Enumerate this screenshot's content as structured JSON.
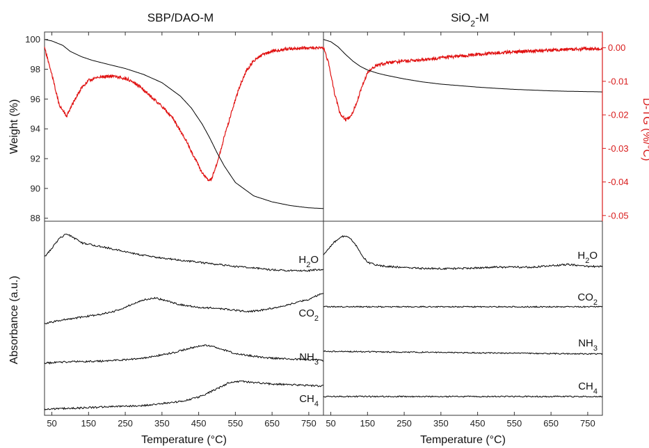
{
  "chart_data": {
    "type": "line",
    "colors": {
      "weight": "#000000",
      "dtg": "#e01010",
      "ftir": "#000000",
      "axis_right": "#d81b1b"
    },
    "panel_titles": [
      {
        "base": "SBP/DAO-M",
        "sub": "",
        "tail": ""
      },
      {
        "base": "SiO",
        "sub": "2",
        "tail": "-M"
      }
    ],
    "xlabel": "Temperature (°C)",
    "ylabel_left": "Weight (%)",
    "ylabel_right": "D-TG (%/°C)",
    "ylabel_bottom": "Absorbance (a.u.)",
    "xlim": [
      30,
      790
    ],
    "x_ticks": [
      50,
      150,
      250,
      350,
      450,
      550,
      650,
      750
    ],
    "x_tick_labels": [
      "50",
      "150",
      "250",
      "350",
      "450",
      "550",
      "650",
      "750"
    ],
    "weight_axis": {
      "ylim": [
        87.8,
        100.5
      ],
      "ticks": [
        88,
        90,
        92,
        94,
        96,
        98,
        100
      ],
      "tick_labels": [
        "88",
        "90",
        "92",
        "94",
        "96",
        "98",
        "100"
      ]
    },
    "dtg_axis": {
      "ylim": [
        -0.0517,
        0.0047
      ],
      "ticks": [
        0.0,
        -0.01,
        -0.02,
        -0.03,
        -0.04,
        -0.05
      ],
      "tick_labels": [
        "0.00",
        "-0.01",
        "-0.02",
        "-0.03",
        "-0.04",
        "-0.05"
      ]
    },
    "tga": [
      {
        "panel": "SBP/DAO-M",
        "weight": {
          "x": [
            30,
            50,
            80,
            100,
            130,
            160,
            200,
            250,
            300,
            350,
            400,
            430,
            460,
            480,
            500,
            520,
            550,
            600,
            650,
            700,
            750,
            790
          ],
          "y": [
            100.0,
            99.9,
            99.6,
            99.2,
            98.85,
            98.6,
            98.35,
            98.05,
            97.65,
            97.1,
            96.2,
            95.4,
            94.3,
            93.4,
            92.4,
            91.5,
            90.4,
            89.5,
            89.1,
            88.85,
            88.7,
            88.65
          ]
        },
        "dtg": {
          "x": [
            30,
            50,
            70,
            90,
            110,
            130,
            150,
            175,
            200,
            230,
            260,
            290,
            320,
            350,
            380,
            410,
            440,
            460,
            475,
            485,
            500,
            520,
            540,
            560,
            580,
            600,
            620,
            650,
            680,
            710,
            750,
            790
          ],
          "y": [
            0.0,
            -0.008,
            -0.017,
            -0.0205,
            -0.016,
            -0.012,
            -0.0098,
            -0.0088,
            -0.0085,
            -0.0087,
            -0.0095,
            -0.0115,
            -0.0145,
            -0.0175,
            -0.021,
            -0.0265,
            -0.033,
            -0.0375,
            -0.0395,
            -0.039,
            -0.0345,
            -0.0265,
            -0.019,
            -0.012,
            -0.0068,
            -0.0038,
            -0.0022,
            -0.001,
            -0.0005,
            -0.0002,
            0.0,
            0.0
          ]
        }
      },
      {
        "panel": "SiO2-M",
        "weight": {
          "x": [
            30,
            50,
            70,
            90,
            110,
            130,
            150,
            175,
            200,
            250,
            300,
            350,
            400,
            450,
            500,
            550,
            600,
            650,
            700,
            750,
            790
          ],
          "y": [
            100.0,
            99.85,
            99.5,
            99.0,
            98.55,
            98.2,
            97.95,
            97.75,
            97.6,
            97.35,
            97.15,
            97.0,
            96.9,
            96.8,
            96.72,
            96.65,
            96.6,
            96.55,
            96.52,
            96.5,
            96.48
          ]
        },
        "dtg": {
          "x": [
            30,
            45,
            60,
            75,
            90,
            105,
            120,
            135,
            150,
            170,
            200,
            250,
            300,
            350,
            400,
            450,
            500,
            550,
            600,
            650,
            700,
            750,
            790
          ],
          "y": [
            0.0,
            -0.005,
            -0.0135,
            -0.0195,
            -0.0215,
            -0.0205,
            -0.0165,
            -0.0115,
            -0.0075,
            -0.0055,
            -0.0045,
            -0.004,
            -0.0035,
            -0.003,
            -0.0025,
            -0.002,
            -0.0015,
            -0.0012,
            -0.001,
            -0.0007,
            -0.0005,
            -0.0003,
            -0.0002
          ]
        }
      }
    ],
    "ftir": [
      {
        "panel": "SBP/DAO-M",
        "series": [
          {
            "label": "H",
            "sub": "2",
            "tail": "O",
            "x": [
              30,
              50,
              70,
              90,
              110,
              130,
              160,
              200,
              250,
              300,
              350,
              400,
              450,
              500,
              550,
              600,
              650,
              700,
              750,
              790
            ],
            "y": [
              369,
              357,
              343,
              336,
              342,
              349,
              352,
              356,
              362,
              367,
              371,
              374,
              377,
              380,
              383,
              385,
              388,
              389,
              389,
              387
            ]
          },
          {
            "label": "CO",
            "sub": "2",
            "tail": "",
            "x": [
              30,
              80,
              130,
              180,
              230,
              270,
              300,
              330,
              360,
              400,
              450,
              500,
              550,
              580,
              620,
              660,
              700,
              750,
              790
            ],
            "y": [
              465,
              460,
              456,
              452,
              446,
              437,
              431,
              428,
              432,
              438,
              442,
              443,
              446,
              448,
              446,
              442,
              437,
              430,
              421
            ]
          },
          {
            "label": "NH",
            "sub": "3",
            "tail": "",
            "x": [
              30,
              100,
              200,
              300,
              380,
              430,
              470,
              500,
              550,
              600,
              650,
              700,
              750,
              790
            ],
            "y": [
              522,
              520,
              519,
              515,
              507,
              500,
              496,
              500,
              508,
              512,
              515,
              516,
              517,
              518
            ]
          },
          {
            "label": "CH",
            "sub": "4",
            "tail": "",
            "x": [
              30,
              100,
              200,
              300,
              400,
              450,
              500,
              530,
              560,
              600,
              650,
              700,
              750,
              790
            ],
            "y": [
              588,
              587,
              585,
              583,
              577,
              571,
              559,
              551,
              548,
              550,
              552,
              553,
              554,
              555
            ]
          }
        ]
      },
      {
        "panel": "SiO2-M",
        "series": [
          {
            "label": "H",
            "sub": "2",
            "tail": "O",
            "x": [
              30,
              45,
              60,
              75,
              90,
              105,
              120,
              135,
              150,
              175,
              200,
              300,
              400,
              500,
              600,
              650,
              700,
              750,
              790
            ],
            "y": [
              367,
              357,
              348,
              341,
              339,
              343,
              354,
              367,
              377,
              381,
              383,
              386,
              386,
              384,
              384,
              382,
              380,
              383,
              383
            ]
          },
          {
            "label": "CO",
            "sub": "2",
            "tail": "",
            "x": [
              30,
              790
            ],
            "y": [
              441,
              441
            ]
          },
          {
            "label": "NH",
            "sub": "3",
            "tail": "",
            "x": [
              30,
              790
            ],
            "y": [
              505,
              509
            ]
          },
          {
            "label": "CH",
            "sub": "4",
            "tail": "",
            "x": [
              30,
              790
            ],
            "y": [
              570,
              570
            ]
          }
        ]
      }
    ]
  }
}
